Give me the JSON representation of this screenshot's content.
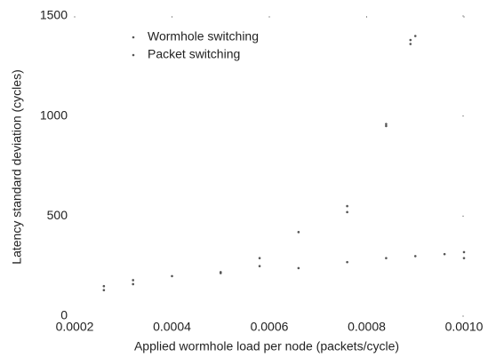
{
  "chart_data": {
    "type": "scatter",
    "xlabel": "Applied wormhole load per node (packets/cycle)",
    "ylabel": "Latency standard deviation (cycles)",
    "xlim": [
      0.0002,
      0.001
    ],
    "ylim": [
      0,
      1500
    ],
    "xticks": [
      0.0002,
      0.0004,
      0.0006,
      0.0008,
      {
        "value": 0.001,
        "label": "0.0010"
      }
    ],
    "yticks": [
      0,
      500,
      1000,
      1500
    ],
    "legend": "upper left",
    "series": [
      {
        "name": "Wormhole switching",
        "color": "#555555",
        "x": [
          0.00026,
          0.00026,
          0.00032,
          0.00032,
          0.0004,
          0.0005,
          0.0005,
          0.00058,
          0.00058,
          0.00066,
          0.00076,
          0.00084,
          0.0009,
          0.00096,
          0.001,
          0.001
        ],
        "values": [
          150,
          130,
          160,
          180,
          200,
          215,
          220,
          250,
          290,
          240,
          270,
          290,
          300,
          310,
          320,
          290
        ]
      },
      {
        "name": "Packet switching",
        "color": "#555555",
        "x": [
          0.00066,
          0.00076,
          0.00076,
          0.00084,
          0.00084,
          0.00089,
          0.00089,
          0.0009
        ],
        "values": [
          420,
          520,
          550,
          950,
          960,
          1380,
          1360,
          1400
        ]
      }
    ]
  }
}
